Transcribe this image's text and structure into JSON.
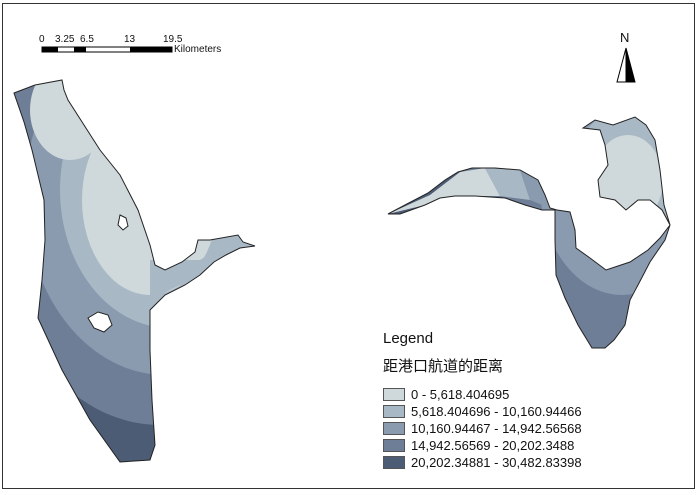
{
  "scale_bar": {
    "ticks": [
      "0",
      "3.25",
      "6.5",
      "13",
      "19.5"
    ],
    "unit": "Kilometers"
  },
  "north_arrow": {
    "label": "N"
  },
  "legend": {
    "title": "Legend",
    "subtitle": "距港口航道的距离",
    "classes": [
      {
        "label": "0 - 5,618.404695",
        "color": "#cfd9db"
      },
      {
        "label": "5,618.404696 - 10,160.94466",
        "color": "#a9b8c5"
      },
      {
        "label": "10,160.94467 - 14,942.56568",
        "color": "#8a9bb0"
      },
      {
        "label": "14,942.56569 - 20,202.3488",
        "color": "#6d7e96"
      },
      {
        "label": "20,202.34881 - 30,482.83398",
        "color": "#4d5c75"
      }
    ]
  }
}
